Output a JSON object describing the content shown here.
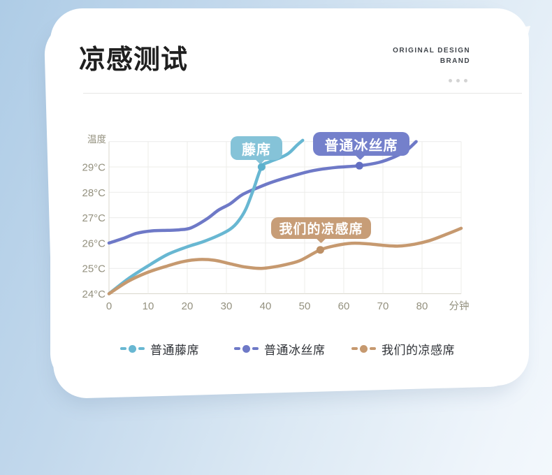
{
  "header": {
    "title": "凉感测试",
    "brand_line1": "ORIGINAL DESIGN",
    "brand_line2": "BRAND"
  },
  "chart_data": {
    "type": "line",
    "title": "凉感测试",
    "xlabel": "分钟",
    "ylabel": "温度",
    "xlim": [
      0,
      90
    ],
    "ylim": [
      24,
      30
    ],
    "x_ticks": [
      0,
      10,
      20,
      30,
      40,
      50,
      60,
      70,
      80
    ],
    "y_tick_values": [
      24,
      25,
      26,
      27,
      28,
      29
    ],
    "y_tick_labels": [
      "24°C",
      "25°C",
      "26°C",
      "27°C",
      "28°C",
      "29°C"
    ],
    "grid": true,
    "legend_position": "bottom",
    "colors": {
      "grid_line": "#ececea",
      "axis_frame": "#d9d7cc",
      "axis_text": "#94917f"
    },
    "series": [
      {
        "name": "普通藤席",
        "badge_label": "藤席",
        "color": "#68b7d2",
        "badge_color": "#85c3d8",
        "dot_color": "#5cb0cc",
        "marker_point": [
          39,
          29.0
        ],
        "points": [
          [
            0,
            24.0
          ],
          [
            5,
            24.6
          ],
          [
            10,
            25.1
          ],
          [
            15,
            25.55
          ],
          [
            20,
            25.85
          ],
          [
            24,
            26.05
          ],
          [
            28,
            26.3
          ],
          [
            31,
            26.55
          ],
          [
            33,
            26.85
          ],
          [
            35,
            27.35
          ],
          [
            37,
            28.15
          ],
          [
            39,
            29.0
          ],
          [
            41,
            29.2
          ],
          [
            44,
            29.38
          ],
          [
            46,
            29.55
          ],
          [
            48,
            29.85
          ],
          [
            49.5,
            30.05
          ]
        ]
      },
      {
        "name": "普通冰丝席",
        "badge_label": "普通冰丝席",
        "color": "#6e79c7",
        "badge_color": "#7480cb",
        "dot_color": "#636fc2",
        "marker_point": [
          64,
          29.05
        ],
        "points": [
          [
            0,
            26.0
          ],
          [
            4,
            26.2
          ],
          [
            7,
            26.38
          ],
          [
            11,
            26.48
          ],
          [
            15,
            26.5
          ],
          [
            18,
            26.52
          ],
          [
            21,
            26.6
          ],
          [
            25,
            26.95
          ],
          [
            28,
            27.3
          ],
          [
            31,
            27.55
          ],
          [
            34,
            27.9
          ],
          [
            38,
            28.18
          ],
          [
            42,
            28.42
          ],
          [
            47,
            28.65
          ],
          [
            52,
            28.85
          ],
          [
            58,
            28.98
          ],
          [
            64,
            29.05
          ],
          [
            69,
            29.18
          ],
          [
            73,
            29.4
          ],
          [
            76,
            29.65
          ],
          [
            78.5,
            30.0
          ]
        ]
      },
      {
        "name": "我们的凉感席",
        "badge_label": "我们的凉感席",
        "color": "#c6996f",
        "badge_color": "#c79d77",
        "dot_color": "#bd9066",
        "marker_point": [
          54,
          25.73
        ],
        "points": [
          [
            0,
            24.0
          ],
          [
            5,
            24.5
          ],
          [
            10,
            24.85
          ],
          [
            15,
            25.1
          ],
          [
            19,
            25.27
          ],
          [
            23,
            25.35
          ],
          [
            27,
            25.32
          ],
          [
            31,
            25.18
          ],
          [
            35,
            25.05
          ],
          [
            39,
            25.0
          ],
          [
            43,
            25.08
          ],
          [
            46,
            25.18
          ],
          [
            49,
            25.32
          ],
          [
            54,
            25.73
          ],
          [
            58,
            25.9
          ],
          [
            62,
            25.99
          ],
          [
            66,
            25.97
          ],
          [
            70,
            25.91
          ],
          [
            74,
            25.88
          ],
          [
            78,
            25.95
          ],
          [
            82,
            26.1
          ],
          [
            86,
            26.33
          ],
          [
            90,
            26.58
          ]
        ]
      }
    ]
  }
}
